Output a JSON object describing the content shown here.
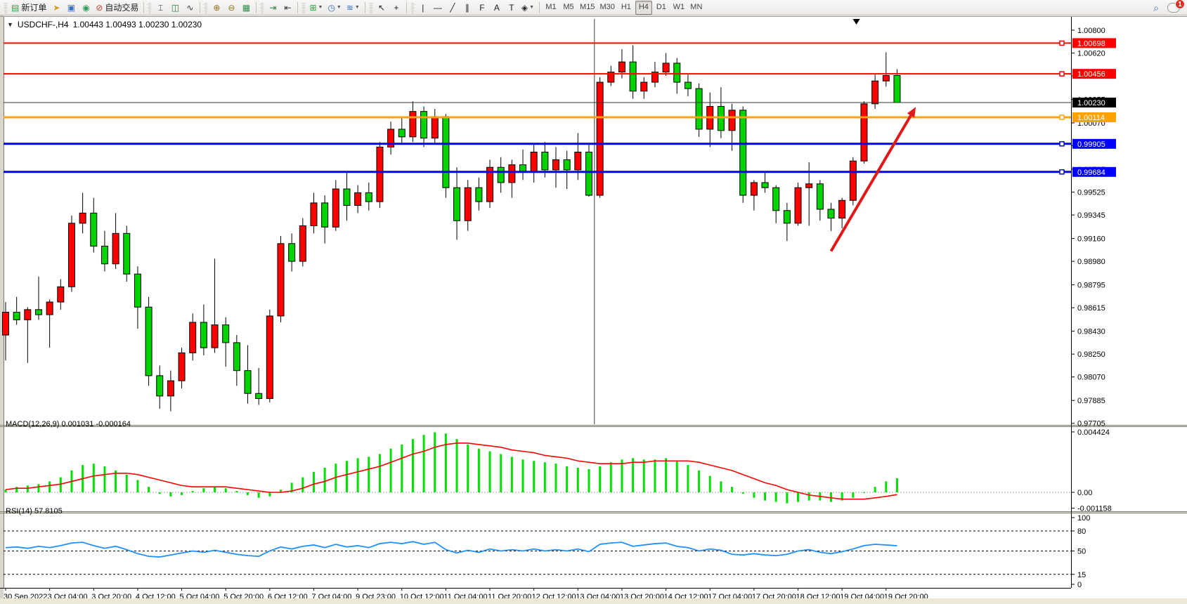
{
  "toolbar": {
    "groups": [
      {
        "buttons": [
          {
            "name": "new-order-button",
            "icon": "new-order-icon",
            "glyph": "▤",
            "color": "#2e9e3e",
            "label": "新订单"
          },
          {
            "name": "pointer-tool-button",
            "icon": "hand-pointer-icon",
            "glyph": "➤",
            "color": "#d79b2a"
          },
          {
            "name": "market-window-button",
            "icon": "window-icon",
            "glyph": "▣",
            "color": "#3a6fc4"
          },
          {
            "name": "signal-button",
            "icon": "signal-icon",
            "glyph": "◉",
            "color": "#2f9e57"
          },
          {
            "name": "auto-trading-button",
            "icon": "autotrade-icon",
            "glyph": "⊘",
            "color": "#c23b2e",
            "label": "自动交易"
          }
        ]
      },
      {
        "buttons": [
          {
            "name": "bar-chart-button",
            "icon": "ohlc-bars-icon",
            "glyph": "⌶",
            "color": "#333"
          },
          {
            "name": "candle-chart-button",
            "icon": "candlestick-icon",
            "glyph": "◫",
            "color": "#2f7e3e"
          },
          {
            "name": "line-chart-button",
            "icon": "line-chart-icon",
            "glyph": "∿",
            "color": "#333"
          }
        ]
      },
      {
        "buttons": [
          {
            "name": "zoom-in-button",
            "icon": "zoom-in-icon",
            "glyph": "⊕",
            "color": "#8a6d1f"
          },
          {
            "name": "zoom-out-button",
            "icon": "zoom-out-icon",
            "glyph": "⊖",
            "color": "#8a6d1f"
          },
          {
            "name": "tile-windows-button",
            "icon": "tile-windows-icon",
            "glyph": "▦",
            "color": "#2f8e4e"
          }
        ]
      },
      {
        "buttons": [
          {
            "name": "auto-scroll-button",
            "icon": "auto-scroll-icon",
            "glyph": "⇥",
            "color": "#2f7e3e"
          },
          {
            "name": "chart-shift-button",
            "icon": "chart-shift-icon",
            "glyph": "⇤",
            "color": "#333"
          }
        ]
      },
      {
        "buttons": [
          {
            "name": "new-chart-button",
            "icon": "new-chart-icon",
            "glyph": "⊞",
            "color": "#2f9e3e",
            "dropdown": true
          },
          {
            "name": "period-button",
            "icon": "clock-icon",
            "glyph": "◷",
            "color": "#3a6fc4",
            "dropdown": true
          },
          {
            "name": "indicators-button",
            "icon": "indicators-icon",
            "glyph": "≋",
            "color": "#3a6fc4",
            "dropdown": true
          }
        ]
      },
      {
        "buttons": [
          {
            "name": "cursor-button",
            "icon": "cursor-arrow-icon",
            "glyph": "↖",
            "color": "#222"
          },
          {
            "name": "crosshair-button",
            "icon": "crosshair-icon",
            "glyph": "+",
            "color": "#222"
          }
        ]
      },
      {
        "buttons": [
          {
            "name": "vline-tool-button",
            "icon": "vertical-line-icon",
            "glyph": "|",
            "color": "#222"
          },
          {
            "name": "hline-tool-button",
            "icon": "horizontal-line-icon",
            "glyph": "—",
            "color": "#222"
          },
          {
            "name": "trendline-tool-button",
            "icon": "trendline-icon",
            "glyph": "╱",
            "color": "#222"
          },
          {
            "name": "channel-tool-button",
            "icon": "channel-icon",
            "glyph": "∥",
            "color": "#222"
          },
          {
            "name": "fibo-tool-button",
            "icon": "fibonacci-icon",
            "glyph": "F",
            "color": "#222"
          },
          {
            "name": "text-tool-button",
            "icon": "text-icon",
            "glyph": "A",
            "color": "#222"
          },
          {
            "name": "label-tool-button",
            "icon": "text-label-icon",
            "glyph": "T",
            "color": "#222"
          },
          {
            "name": "shapes-tool-button",
            "icon": "shapes-icon",
            "glyph": "◈",
            "color": "#222",
            "dropdown": true
          }
        ]
      }
    ],
    "timeframes": [
      "M1",
      "M5",
      "M15",
      "M30",
      "H1",
      "H4",
      "D1",
      "W1",
      "MN"
    ],
    "active_timeframe": "H4",
    "search_glyph": "⌕",
    "chat_badge": "1"
  },
  "chart": {
    "collapse_glyph": "▼",
    "symbol_tf": "USDCHF-,H4",
    "ohlc": "1.00443 1.00493 1.00230 1.00230",
    "macd_name": "MACD(12,26,9)",
    "macd_values": "0.001031 -0.000164",
    "rsi_name": "RSI(14)",
    "rsi_value": "57.8105"
  },
  "chart_data": {
    "type": "candlestick",
    "symbol": "USDCHF",
    "timeframe": "H4",
    "title": "USDCHF-,H4",
    "current_ohlc": {
      "open": 1.00443,
      "high": 1.00493,
      "low": 1.0023,
      "close": 1.0023
    },
    "candles": [
      [
        0.984,
        0.9866,
        0.982,
        0.9858
      ],
      [
        0.9858,
        0.987,
        0.9848,
        0.9852
      ],
      [
        0.9852,
        0.9862,
        0.9818,
        0.986
      ],
      [
        0.986,
        0.9886,
        0.9852,
        0.9856
      ],
      [
        0.9856,
        0.9868,
        0.983,
        0.9866
      ],
      [
        0.9866,
        0.9884,
        0.986,
        0.9878
      ],
      [
        0.9878,
        0.9934,
        0.9874,
        0.9928
      ],
      [
        0.9928,
        0.9952,
        0.992,
        0.9936
      ],
      [
        0.9936,
        0.9948,
        0.9905,
        0.991
      ],
      [
        0.991,
        0.9922,
        0.989,
        0.9896
      ],
      [
        0.9896,
        0.9936,
        0.9892,
        0.992
      ],
      [
        0.992,
        0.9926,
        0.9882,
        0.9888
      ],
      [
        0.9888,
        0.9894,
        0.9845,
        0.9862
      ],
      [
        0.9862,
        0.987,
        0.98,
        0.9808
      ],
      [
        0.9808,
        0.9816,
        0.9782,
        0.9792
      ],
      [
        0.9792,
        0.9812,
        0.978,
        0.9804
      ],
      [
        0.9804,
        0.983,
        0.9798,
        0.9826
      ],
      [
        0.9826,
        0.9857,
        0.982,
        0.985
      ],
      [
        0.985,
        0.9864,
        0.9824,
        0.983
      ],
      [
        0.983,
        0.99,
        0.9826,
        0.9848
      ],
      [
        0.9848,
        0.9854,
        0.9815,
        0.9834
      ],
      [
        0.9834,
        0.984,
        0.98,
        0.9812
      ],
      [
        0.9812,
        0.9832,
        0.9786,
        0.9794
      ],
      [
        0.9794,
        0.9814,
        0.9785,
        0.979
      ],
      [
        0.979,
        0.986,
        0.9787,
        0.9855
      ],
      [
        0.9855,
        0.9918,
        0.985,
        0.9912
      ],
      [
        0.9912,
        0.992,
        0.989,
        0.9898
      ],
      [
        0.9898,
        0.9932,
        0.9894,
        0.9926
      ],
      [
        0.9926,
        0.9952,
        0.992,
        0.9944
      ],
      [
        0.9944,
        0.995,
        0.9912,
        0.9925
      ],
      [
        0.9925,
        0.9962,
        0.9922,
        0.9955
      ],
      [
        0.9955,
        0.9968,
        0.993,
        0.9942
      ],
      [
        0.9942,
        0.9958,
        0.9936,
        0.9952
      ],
      [
        0.9952,
        0.996,
        0.9938,
        0.9945
      ],
      [
        0.9945,
        0.9992,
        0.994,
        0.9988
      ],
      [
        0.9988,
        1.0008,
        0.9982,
        1.0002
      ],
      [
        1.0002,
        1.0012,
        0.999,
        0.9996
      ],
      [
        0.9996,
        1.0024,
        0.9992,
        1.0016
      ],
      [
        1.0016,
        1.002,
        0.9988,
        0.9995
      ],
      [
        0.9995,
        1.0018,
        0.999,
        1.0012
      ],
      [
        1.0012,
        1.0014,
        0.9948,
        0.9956
      ],
      [
        0.9956,
        0.9972,
        0.9915,
        0.993
      ],
      [
        0.993,
        0.9962,
        0.9922,
        0.9956
      ],
      [
        0.9956,
        0.9964,
        0.9938,
        0.9945
      ],
      [
        0.9945,
        0.9978,
        0.994,
        0.9972
      ],
      [
        0.9972,
        0.998,
        0.9952,
        0.996
      ],
      [
        0.996,
        0.9978,
        0.9948,
        0.9974
      ],
      [
        0.9974,
        0.9986,
        0.9962,
        0.9968
      ],
      [
        0.9968,
        0.999,
        0.996,
        0.9984
      ],
      [
        0.9984,
        0.9992,
        0.9964,
        0.997
      ],
      [
        0.997,
        0.9988,
        0.9956,
        0.9978
      ],
      [
        0.9978,
        0.9985,
        0.9955,
        0.997
      ],
      [
        0.997,
        0.9999,
        0.9962,
        0.9984
      ],
      [
        0.9984,
        0.999,
        0.9949,
        0.995
      ],
      [
        0.995,
        1.0043,
        0.9948,
        1.0039
      ],
      [
        1.0039,
        1.0052,
        1.0036,
        1.0047
      ],
      [
        1.0047,
        1.0065,
        1.0042,
        1.0055
      ],
      [
        1.0055,
        1.0068,
        1.0026,
        1.0032
      ],
      [
        1.0032,
        1.0043,
        1.0026,
        1.0039
      ],
      [
        1.0039,
        1.0055,
        1.0035,
        1.0047
      ],
      [
        1.0047,
        1.0062,
        1.0044,
        1.0054
      ],
      [
        1.0054,
        1.0058,
        1.003,
        1.0039
      ],
      [
        1.0039,
        1.0045,
        1.0028,
        1.0034
      ],
      [
        1.0034,
        1.0038,
        0.9996,
        1.0002
      ],
      [
        1.0002,
        1.0031,
        0.9988,
        1.002
      ],
      [
        1.002,
        1.0035,
        0.9995,
        1.0001
      ],
      [
        1.0001,
        1.0022,
        0.9985,
        1.0017
      ],
      [
        1.0017,
        1.002,
        0.9944,
        0.995
      ],
      [
        0.995,
        0.9962,
        0.9938,
        0.996
      ],
      [
        0.996,
        0.9968,
        0.9952,
        0.9956
      ],
      [
        0.9956,
        0.9958,
        0.9928,
        0.9938
      ],
      [
        0.9938,
        0.9944,
        0.9914,
        0.9928
      ],
      [
        0.9928,
        0.996,
        0.9926,
        0.9956
      ],
      [
        0.9956,
        0.9976,
        0.9926,
        0.9959
      ],
      [
        0.9959,
        0.9962,
        0.993,
        0.9939
      ],
      [
        0.9939,
        0.9944,
        0.9922,
        0.9932
      ],
      [
        0.9932,
        0.9948,
        0.9924,
        0.9946
      ],
      [
        0.9946,
        0.998,
        0.9942,
        0.9977
      ],
      [
        0.9977,
        1.0024,
        0.9975,
        1.0022
      ],
      [
        1.0022,
        1.0045,
        1.0018,
        1.004
      ],
      [
        1.004,
        1.00625,
        1.00355,
        1.00443
      ],
      [
        1.00443,
        1.00493,
        1.0023,
        1.0023
      ]
    ],
    "x_labels": [
      "30 Sep 2022",
      "3 Oct 04:00",
      "3 Oct 20:00",
      "4 Oct 12:00",
      "5 Oct 04:00",
      "5 Oct 20:00",
      "6 Oct 12:00",
      "7 Oct 04:00",
      "9 Oct 23:00",
      "10 Oct 12:00",
      "11 Oct 04:00",
      "11 Oct 20:00",
      "12 Oct 12:00",
      "13 Oct 04:00",
      "13 Oct 20:00",
      "14 Oct 12:00",
      "17 Oct 04:00",
      "17 Oct 20:00",
      "18 Oct 12:00",
      "19 Oct 04:00",
      "19 Oct 20:00"
    ],
    "label_every_n_bars": 4,
    "price_ticks": [
      1.008,
      1.0062,
      1.0044,
      1.00255,
      1.0007,
      0.9989,
      0.99705,
      0.99525,
      0.99345,
      0.9916,
      0.9898,
      0.98795,
      0.98615,
      0.9843,
      0.9825,
      0.9807,
      0.97885,
      0.97705
    ],
    "price_range": [
      0.97698,
      1.00888
    ],
    "hlines": [
      {
        "price": 1.00698,
        "label": "1.00698",
        "color": "#FF0000",
        "width": 2,
        "marker": true
      },
      {
        "price": 1.00456,
        "label": "1.00456",
        "color": "#FF0000",
        "width": 2,
        "marker": true
      },
      {
        "price": 1.0023,
        "label": "1.00230",
        "color": "#333333",
        "width": 1,
        "marker": false,
        "is_current_price": true
      },
      {
        "price": 1.00114,
        "label": "1.00114",
        "color": "#FFA200",
        "width": 3,
        "marker": true
      },
      {
        "price": 0.99905,
        "label": "0.99905",
        "color": "#0000FF",
        "width": 3,
        "marker": true
      },
      {
        "price": 0.99684,
        "label": "0.99684",
        "color": "#0000FF",
        "width": 3,
        "marker": true
      }
    ],
    "vline_bar": 53.5,
    "arrow": {
      "from": {
        "bar": 75,
        "price": 0.9906
      },
      "to": {
        "bar": 82.7,
        "price": 1.00195
      },
      "color": "#E01818"
    },
    "shift_marker_x_bar": 77.3,
    "macd": {
      "name": "MACD",
      "params": "12,26,9",
      "main_value": 0.001031,
      "signal_value": -0.000164,
      "ticks": [
        {
          "v": 0.004424,
          "label": "0.004424"
        },
        {
          "v": 0.0,
          "label": "0.00"
        },
        {
          "v": -0.001158,
          "label": "-0.001158"
        }
      ],
      "range": [
        -0.00134,
        0.00483
      ],
      "values": [
        0.0002,
        0.0004,
        0.0005,
        0.0006,
        0.0008,
        0.0011,
        0.0016,
        0.002,
        0.0021,
        0.0019,
        0.0016,
        0.0013,
        0.0009,
        0.0004,
        -0.0001,
        -0.0003,
        -0.0002,
        0.0001,
        0.0003,
        0.0004,
        0.0003,
        0.0001,
        -0.0002,
        -0.0004,
        -0.0003,
        0.0002,
        0.0007,
        0.0011,
        0.0015,
        0.0018,
        0.0021,
        0.0023,
        0.0025,
        0.0026,
        0.0028,
        0.0032,
        0.0035,
        0.0039,
        0.0042,
        0.0044,
        0.0043,
        0.0039,
        0.0035,
        0.0032,
        0.003,
        0.0028,
        0.0026,
        0.0024,
        0.0023,
        0.0022,
        0.0021,
        0.0019,
        0.0018,
        0.0017,
        0.0019,
        0.0022,
        0.0024,
        0.0025,
        0.0024,
        0.0024,
        0.0025,
        0.0023,
        0.002,
        0.0016,
        0.0012,
        0.0008,
        0.0004,
        -0.0001,
        -0.0004,
        -0.0006,
        -0.0007,
        -0.0008,
        -0.0007,
        -0.0006,
        -0.0006,
        -0.0007,
        -0.0006,
        -0.0004,
        0.0,
        0.0004,
        0.0008,
        0.001031
      ],
      "signal": [
        0.0002,
        0.0003,
        0.0003,
        0.0004,
        0.0005,
        0.0006,
        0.0008,
        0.001,
        0.0012,
        0.0013,
        0.0014,
        0.0014,
        0.0013,
        0.0011,
        0.0009,
        0.0007,
        0.0005,
        0.0004,
        0.0004,
        0.0004,
        0.0004,
        0.0003,
        0.0002,
        0.0001,
        0.0,
        0.0,
        0.0001,
        0.0003,
        0.0006,
        0.0008,
        0.0011,
        0.0013,
        0.0015,
        0.0017,
        0.0019,
        0.0022,
        0.0025,
        0.0028,
        0.003,
        0.0033,
        0.0035,
        0.0036,
        0.0036,
        0.0035,
        0.0034,
        0.0033,
        0.0031,
        0.003,
        0.0029,
        0.0027,
        0.0026,
        0.0025,
        0.0023,
        0.0022,
        0.0021,
        0.0021,
        0.0021,
        0.0022,
        0.0022,
        0.0023,
        0.0023,
        0.0023,
        0.0023,
        0.0022,
        0.002,
        0.0018,
        0.0016,
        0.0013,
        0.001,
        0.0007,
        0.0005,
        0.0002,
        0.0,
        -0.0002,
        -0.0003,
        -0.0004,
        -0.0005,
        -0.0005,
        -0.0005,
        -0.0004,
        -0.0003,
        -0.000164
      ]
    },
    "rsi": {
      "name": "RSI",
      "period": 14,
      "current": 57.8105,
      "ticks": [
        {
          "v": 100,
          "label": "100"
        },
        {
          "v": 80,
          "label": "80"
        },
        {
          "v": 50,
          "label": "50"
        },
        {
          "v": 15,
          "label": "15"
        },
        {
          "v": 0,
          "label": "0"
        }
      ],
      "levels": [
        80,
        50,
        15
      ],
      "range": [
        0,
        100
      ],
      "values": [
        55,
        56,
        54,
        57,
        55,
        58,
        62,
        63,
        58,
        54,
        57,
        52,
        46,
        42,
        41,
        44,
        47,
        50,
        48,
        51,
        48,
        45,
        43,
        42,
        50,
        56,
        53,
        57,
        59,
        55,
        60,
        56,
        58,
        55,
        61,
        63,
        61,
        64,
        60,
        63,
        52,
        47,
        51,
        48,
        53,
        50,
        52,
        50,
        53,
        50,
        52,
        50,
        53,
        49,
        60,
        62,
        63,
        57,
        59,
        61,
        62,
        57,
        55,
        50,
        53,
        51,
        45,
        44,
        46,
        44,
        43,
        45,
        50,
        52,
        48,
        46,
        49,
        53,
        58,
        60,
        59,
        57.81
      ]
    },
    "colors": {
      "bull": "#FF0000",
      "bear": "#00D300",
      "wick": "#000000",
      "macd_bar": "#00E000",
      "macd_signal": "#FF0000",
      "rsi_line": "#1E90FF",
      "axis_text": "#000000",
      "background": "#FFFFFF"
    }
  }
}
